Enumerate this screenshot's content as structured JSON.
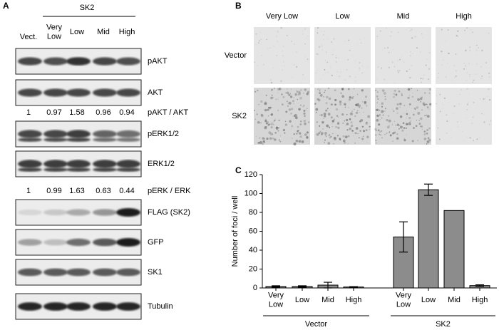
{
  "panel_a": {
    "label": "A",
    "group": "SK2",
    "lanes": [
      "Vect.",
      "Very Low",
      "Low",
      "Mid",
      "High"
    ],
    "blots": [
      "pAKT",
      "AKT",
      "pERK1/2",
      "ERK1/2",
      "FLAG (SK2)",
      "GFP",
      "SK1",
      "Tubulin"
    ],
    "ratios": [
      {
        "label": "pAKT / AKT",
        "values": [
          1,
          0.97,
          1.58,
          0.96,
          0.94
        ]
      },
      {
        "label": "pERK / ERK",
        "values": [
          1,
          0.99,
          1.63,
          0.63,
          0.44
        ]
      }
    ]
  },
  "panel_b": {
    "label": "B",
    "columns": [
      "Very Low",
      "Low",
      "Mid",
      "High"
    ],
    "rows": [
      "Vector",
      "SK2"
    ]
  },
  "chart_data": {
    "type": "bar",
    "panel_label": "C",
    "y_label": "Number of foci / well",
    "categories": [
      "Very Low",
      "Low",
      "Mid",
      "High",
      "Very Low",
      "Low",
      "Mid",
      "High"
    ],
    "groups": [
      "Vector",
      "SK2"
    ],
    "values": [
      1.5,
      1.5,
      3,
      1,
      54,
      104,
      82,
      2.5
    ],
    "errors": [
      0.8,
      0.8,
      3,
      0.4,
      16,
      6,
      null,
      0.8
    ],
    "color": "#8c8c8c",
    "ylim": [
      0,
      120
    ],
    "yticks": [
      0,
      20,
      40,
      60,
      80,
      100,
      120
    ]
  }
}
